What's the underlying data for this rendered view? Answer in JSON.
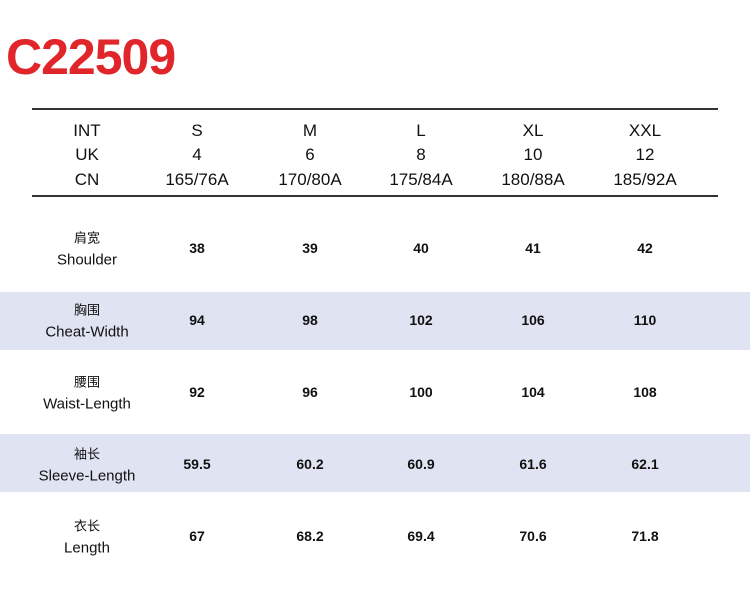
{
  "title": "C22509",
  "header": {
    "rows": [
      [
        "INT",
        "S",
        "M",
        "L",
        "XL",
        "XXL"
      ],
      [
        "UK",
        4,
        6,
        8,
        10,
        12
      ],
      [
        "CN",
        "165/76A",
        "170/80A",
        "175/84A",
        "180/88A",
        "185/92A"
      ]
    ]
  },
  "table": {
    "rows": [
      {
        "zh": "肩宽",
        "en": "Shoulder",
        "values": [
          38,
          39,
          40,
          41,
          42
        ]
      },
      {
        "zh": "胸围",
        "en": "Cheat-Width",
        "values": [
          94,
          98,
          102,
          106,
          110
        ]
      },
      {
        "zh": "腰围",
        "en": "Waist-Length",
        "values": [
          92,
          96,
          100,
          104,
          108
        ]
      },
      {
        "zh": "袖长",
        "en": "Sleeve-Length",
        "values": [
          59.5,
          60.2,
          60.9,
          61.6,
          62.1
        ]
      },
      {
        "zh": "衣长",
        "en": "Length",
        "values": [
          67,
          68.2,
          69.4,
          70.6,
          71.8
        ]
      }
    ]
  }
}
